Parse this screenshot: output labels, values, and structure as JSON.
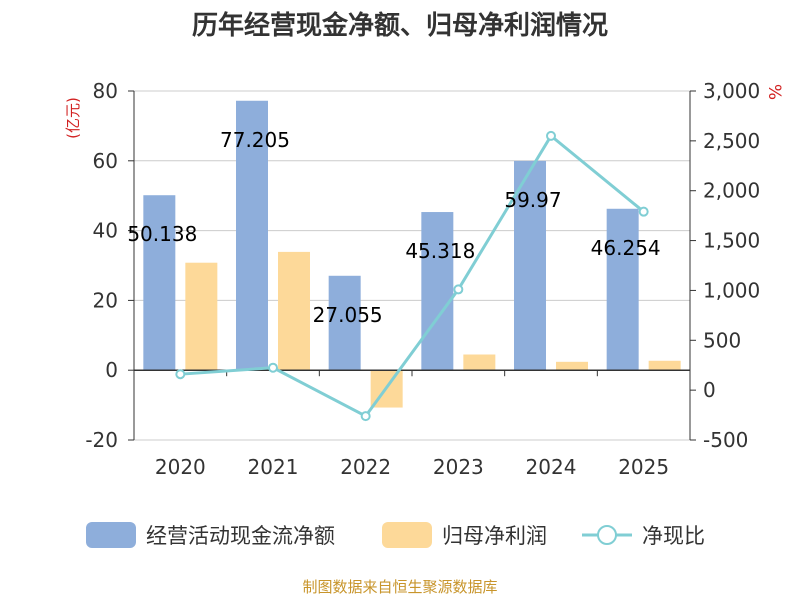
{
  "chart_data": {
    "type": "bar",
    "title": "历年经营现金净额、归母净利润情况",
    "categories": [
      "2020",
      "2021",
      "2022",
      "2023",
      "2024",
      "2025"
    ],
    "left_axis": {
      "label": "(亿元)",
      "ylim": [
        -20,
        80
      ],
      "ticks": [
        -20,
        0,
        20,
        40,
        60,
        80
      ]
    },
    "right_axis": {
      "label": "%",
      "ylim": [
        -500,
        3000
      ],
      "ticks": [
        -500,
        0,
        500,
        1000,
        1500,
        2000,
        2500,
        3000
      ]
    },
    "series": [
      {
        "name": "经营活动现金流净额",
        "type": "bar",
        "axis": "left",
        "color": "#8eaedb",
        "values": [
          50.138,
          77.205,
          27.055,
          45.318,
          59.97,
          46.254
        ],
        "labels": [
          "50.138",
          "77.205",
          "27.055",
          "45.318",
          "59.97",
          "46.254"
        ]
      },
      {
        "name": "归母净利润",
        "type": "bar",
        "axis": "left",
        "color": "#fdd999",
        "values": [
          30.8,
          33.9,
          -10.7,
          4.5,
          2.4,
          2.7
        ]
      },
      {
        "name": "净现比",
        "type": "line",
        "axis": "right",
        "color": "#80ced4",
        "values": [
          160,
          225,
          -260,
          1010,
          2550,
          1790
        ]
      }
    ],
    "grid": true,
    "legend_position": "bottom",
    "source": "制图数据来自恒生聚源数据库"
  }
}
